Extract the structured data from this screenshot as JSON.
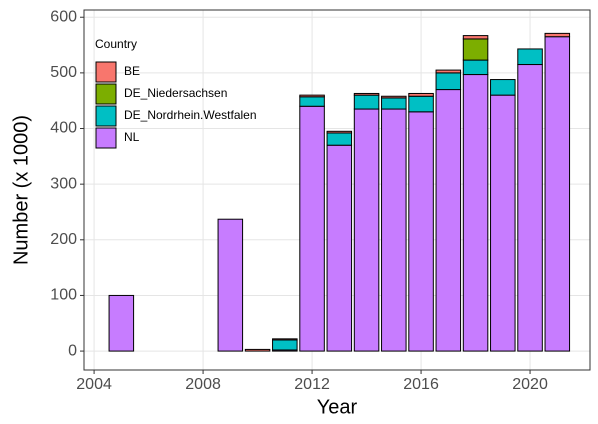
{
  "chart_data": {
    "type": "stacked-bar",
    "x_label": "Year",
    "y_label": "Number (x 1000)",
    "legend_title": "Country",
    "legend_position": "top-left",
    "grid": true,
    "x": [
      2005,
      2009,
      2010,
      2011,
      2012,
      2013,
      2014,
      2015,
      2016,
      2017,
      2018,
      2019,
      2020,
      2021
    ],
    "series": [
      {
        "name": "NL",
        "color": "#C77CFF",
        "values": [
          100,
          237,
          null,
          2,
          440,
          370,
          435,
          435,
          430,
          470,
          497,
          460,
          515,
          565
        ]
      },
      {
        "name": "DE_Nordrhein.Westfalen",
        "color": "#00BFC4",
        "values": [
          null,
          null,
          null,
          18,
          17,
          22,
          25,
          20,
          28,
          30,
          26,
          28,
          28,
          null
        ]
      },
      {
        "name": "DE_Niedersachsen",
        "color": "#7CAE00",
        "values": [
          null,
          null,
          null,
          null,
          null,
          null,
          null,
          null,
          null,
          null,
          38,
          null,
          null,
          null
        ]
      },
      {
        "name": "BE",
        "color": "#F8766D",
        "values": [
          null,
          null,
          3,
          2,
          3,
          3,
          3,
          3,
          5,
          5,
          6,
          null,
          null,
          6
        ]
      }
    ],
    "xlim": [
      2003.63,
      2022.2
    ],
    "xticks": [
      2004,
      2008,
      2012,
      2016,
      2020
    ],
    "ylim": [
      -34,
      613
    ],
    "yticks": [
      0,
      100,
      200,
      300,
      400,
      500,
      600
    ]
  }
}
